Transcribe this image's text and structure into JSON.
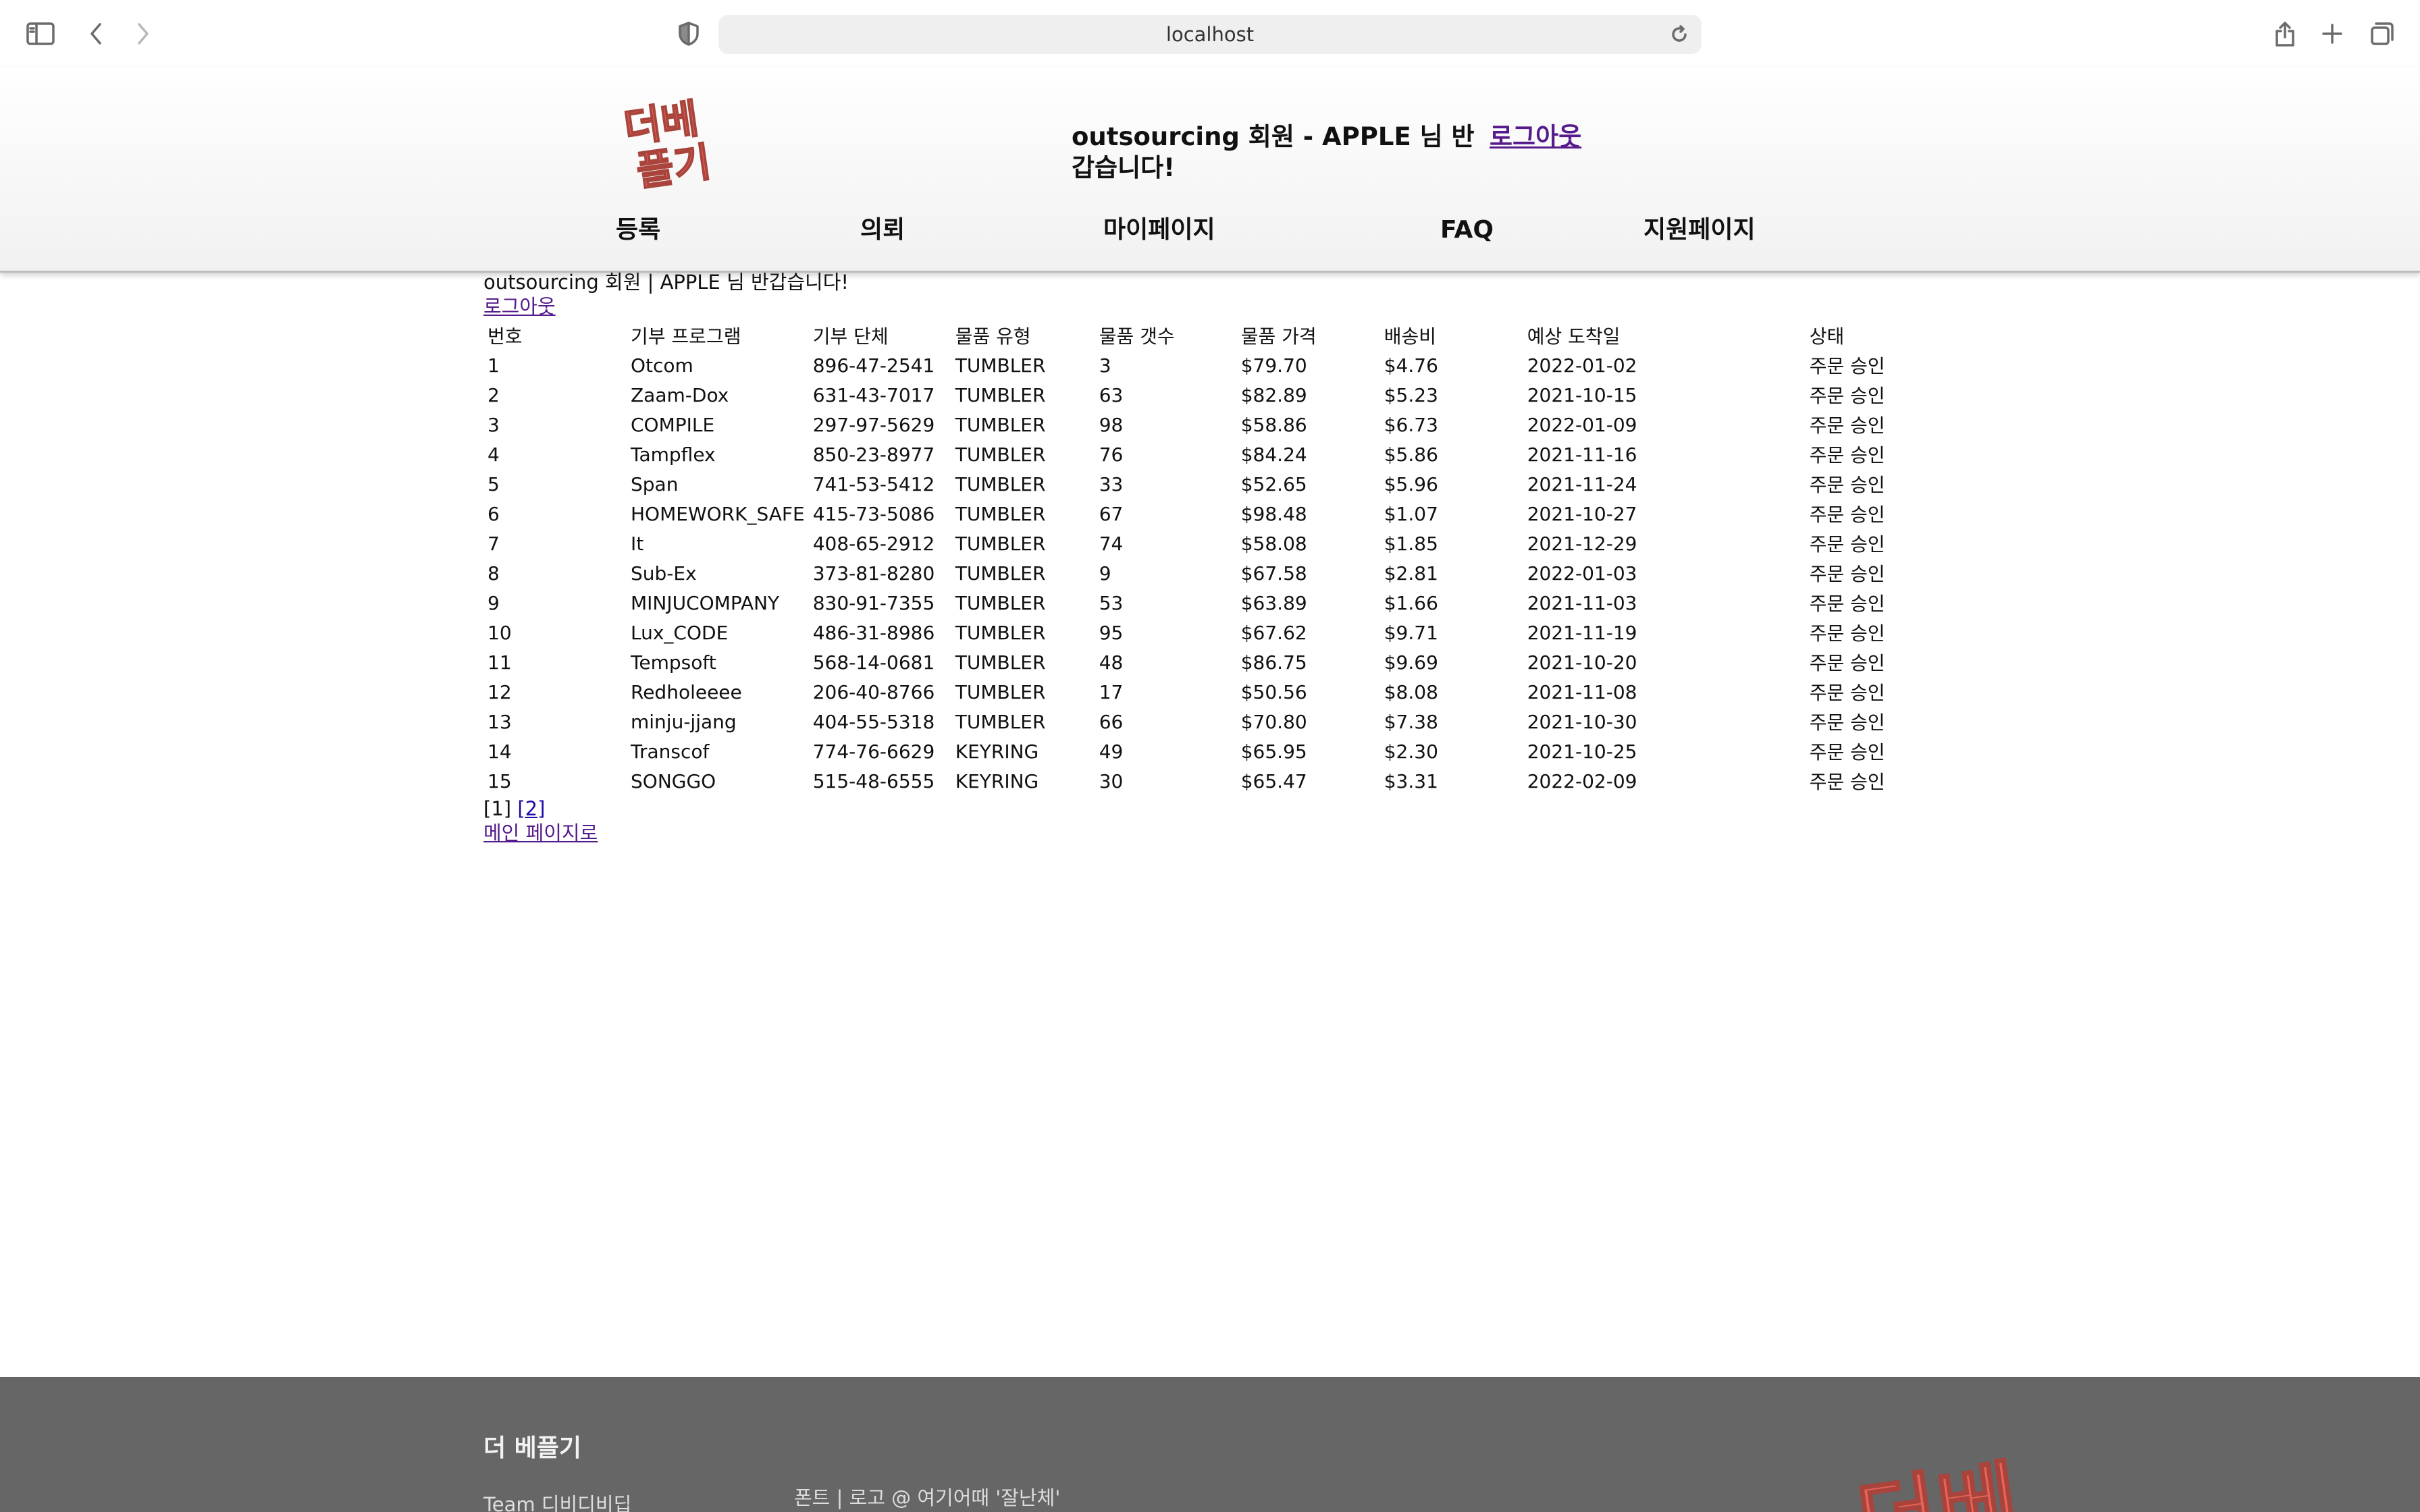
{
  "browser": {
    "url": "localhost"
  },
  "header": {
    "logo_text": "더베 플기",
    "greeting": "outsourcing 회원 - APPLE 님 반갑습니다!",
    "logout": "로그아웃",
    "nav": [
      "등록",
      "의뢰",
      "마이페이지",
      "FAQ",
      "지원페이지"
    ]
  },
  "content": {
    "welcome": "outsourcing 회원 | APPLE 님 반갑습니다!",
    "logout": "로그아웃",
    "columns": [
      "번호",
      "기부 프로그램",
      "기부 단체",
      "물품 유형",
      "물품 갯수",
      "물품 가격",
      "배송비",
      "예상 도착일",
      "상태"
    ],
    "rows": [
      [
        "1",
        "Otcom",
        "896-47-2541",
        "TUMBLER",
        "3",
        "$79.70",
        "$4.76",
        "2022-01-02",
        "주문 승인"
      ],
      [
        "2",
        "Zaam-Dox",
        "631-43-7017",
        "TUMBLER",
        "63",
        "$82.89",
        "$5.23",
        "2021-10-15",
        "주문 승인"
      ],
      [
        "3",
        "COMPILE",
        "297-97-5629",
        "TUMBLER",
        "98",
        "$58.86",
        "$6.73",
        "2022-01-09",
        "주문 승인"
      ],
      [
        "4",
        "Tampflex",
        "850-23-8977",
        "TUMBLER",
        "76",
        "$84.24",
        "$5.86",
        "2021-11-16",
        "주문 승인"
      ],
      [
        "5",
        "Span",
        "741-53-5412",
        "TUMBLER",
        "33",
        "$52.65",
        "$5.96",
        "2021-11-24",
        "주문 승인"
      ],
      [
        "6",
        "HOMEWORK_SAFE",
        "415-73-5086",
        "TUMBLER",
        "67",
        "$98.48",
        "$1.07",
        "2021-10-27",
        "주문 승인"
      ],
      [
        "7",
        "It",
        "408-65-2912",
        "TUMBLER",
        "74",
        "$58.08",
        "$1.85",
        "2021-12-29",
        "주문 승인"
      ],
      [
        "8",
        "Sub-Ex",
        "373-81-8280",
        "TUMBLER",
        "9",
        "$67.58",
        "$2.81",
        "2022-01-03",
        "주문 승인"
      ],
      [
        "9",
        "MINJUCOMPANY",
        "830-91-7355",
        "TUMBLER",
        "53",
        "$63.89",
        "$1.66",
        "2021-11-03",
        "주문 승인"
      ],
      [
        "10",
        "Lux_CODE",
        "486-31-8986",
        "TUMBLER",
        "95",
        "$67.62",
        "$9.71",
        "2021-11-19",
        "주문 승인"
      ],
      [
        "11",
        "Tempsoft",
        "568-14-0681",
        "TUMBLER",
        "48",
        "$86.75",
        "$9.69",
        "2021-10-20",
        "주문 승인"
      ],
      [
        "12",
        "Redholeeee",
        "206-40-8766",
        "TUMBLER",
        "17",
        "$50.56",
        "$8.08",
        "2021-11-08",
        "주문 승인"
      ],
      [
        "13",
        "minju-jjang",
        "404-55-5318",
        "TUMBLER",
        "66",
        "$70.80",
        "$7.38",
        "2021-10-30",
        "주문 승인"
      ],
      [
        "14",
        "Transcof",
        "774-76-6629",
        "KEYRING",
        "49",
        "$65.95",
        "$2.30",
        "2021-10-25",
        "주문 승인"
      ],
      [
        "15",
        "SONGGO",
        "515-48-6555",
        "KEYRING",
        "30",
        "$65.47",
        "$3.31",
        "2022-02-09",
        "주문 승인"
      ]
    ],
    "pager": {
      "current": "[1]",
      "next": "[2]"
    },
    "main_link": "메인 페이지로"
  },
  "footer": {
    "title": "더 베플기",
    "team": "Team 디비디비딥",
    "font_credit": "폰트 | 로고 @ 여기어때 '잘난체'",
    "logo_text": "더베"
  },
  "colors": {
    "visited_link": "#551a8b",
    "link": "#1a0dab",
    "footer_bg": "#666666",
    "logo_red": "#e8645a"
  }
}
